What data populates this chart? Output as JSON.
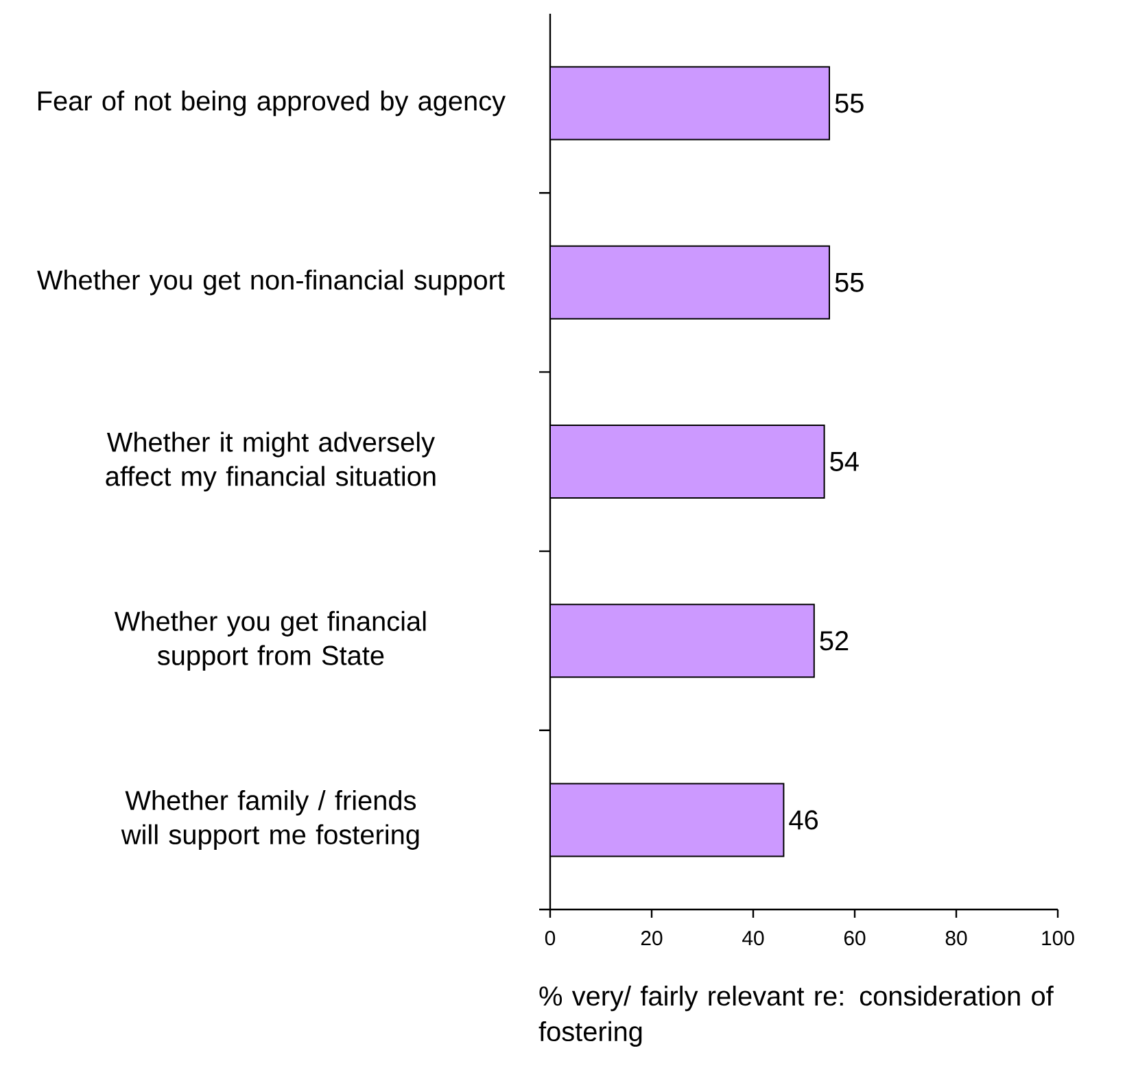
{
  "chart_data": {
    "type": "bar",
    "orientation": "horizontal",
    "categories": [
      "Fear of not being approved by agency",
      "Whether you get non-financial support",
      "Whether it might adversely affect my financial situation",
      "Whether you get financial support from State",
      "Whether family / friends will support me fostering"
    ],
    "values": [
      55,
      55,
      54,
      52,
      46
    ],
    "color": "#cc99ff",
    "xlabel": "% very/ fairly relevant re: consideration of fostering",
    "xlim": [
      0,
      100
    ],
    "xticks": [
      0,
      20,
      40,
      60,
      80,
      100
    ],
    "data_labels": true
  }
}
